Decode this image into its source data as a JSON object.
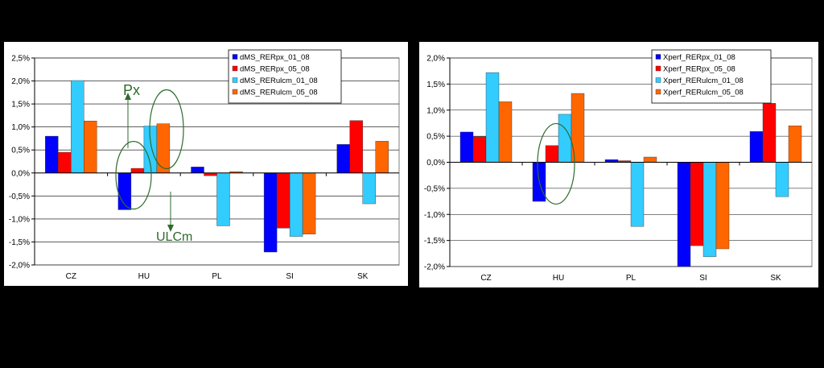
{
  "colors": {
    "series": [
      "#0000ff",
      "#ff0000",
      "#33ccff",
      "#ff6600"
    ],
    "annotation": "#2e6b2e",
    "gridline": "#000000",
    "background": "#000000"
  },
  "annotations": {
    "px_label": "Px",
    "ulcm_label": "ULCm"
  },
  "chart_data": [
    {
      "type": "bar",
      "title": "",
      "xlabel": "",
      "ylabel": "",
      "categories": [
        "CZ",
        "HU",
        "PL",
        "SI",
        "SK"
      ],
      "ylim": [
        -0.02,
        0.025
      ],
      "yticks": [
        0.025,
        0.02,
        0.015,
        0.01,
        0.005,
        0.0,
        -0.005,
        -0.01,
        -0.015,
        -0.02
      ],
      "ytick_labels": [
        "2,5%",
        "2,0%",
        "1,5%",
        "1,0%",
        "0,5%",
        "0,0%",
        "-0,5%",
        "-1,0%",
        "-1,5%",
        "-2,0%"
      ],
      "grid": "horizontal",
      "legend_position": "top-right",
      "series": [
        {
          "name": "dMS_RERpx_01_08",
          "values": [
            0.008,
            -0.008,
            0.0013,
            -0.0172,
            0.0062
          ]
        },
        {
          "name": "dMS_RERpx_05_08",
          "values": [
            0.0045,
            0.001,
            -0.0006,
            -0.012,
            0.0114
          ]
        },
        {
          "name": "dMS_RERulcm_01_08",
          "values": [
            0.0201,
            0.0102,
            -0.0115,
            -0.0138,
            -0.0067
          ]
        },
        {
          "name": "dMS_RERulcm_05_08",
          "values": [
            0.0113,
            0.0107,
            0.0003,
            -0.0133,
            0.0069
          ]
        }
      ]
    },
    {
      "type": "bar",
      "title": "",
      "xlabel": "",
      "ylabel": "",
      "categories": [
        "CZ",
        "HU",
        "PL",
        "SI",
        "SK"
      ],
      "ylim": [
        -0.02,
        0.02
      ],
      "yticks": [
        0.02,
        0.015,
        0.01,
        0.005,
        0.0,
        -0.005,
        -0.01,
        -0.015,
        -0.02
      ],
      "ytick_labels": [
        "2,0%",
        "1,5%",
        "1,0%",
        "0,5%",
        "0,0%",
        "-0,5%",
        "-1,0%",
        "-1,5%",
        "-2,0%"
      ],
      "grid": "horizontal",
      "legend_position": "top-right",
      "series": [
        {
          "name": "Xperf_RERpx_01_08",
          "values": [
            0.0058,
            -0.0075,
            0.0005,
            -0.02,
            0.0059
          ]
        },
        {
          "name": "Xperf_RERpx_05_08",
          "values": [
            0.0049,
            0.0032,
            0.0003,
            -0.016,
            0.0113
          ]
        },
        {
          "name": "Xperf_RERulcm_01_08",
          "values": [
            0.0172,
            0.0092,
            -0.0123,
            -0.0181,
            -0.0066
          ]
        },
        {
          "name": "Xperf_RERulcm_05_08",
          "values": [
            0.0116,
            0.0132,
            0.001,
            -0.0166,
            0.007
          ]
        }
      ]
    }
  ]
}
